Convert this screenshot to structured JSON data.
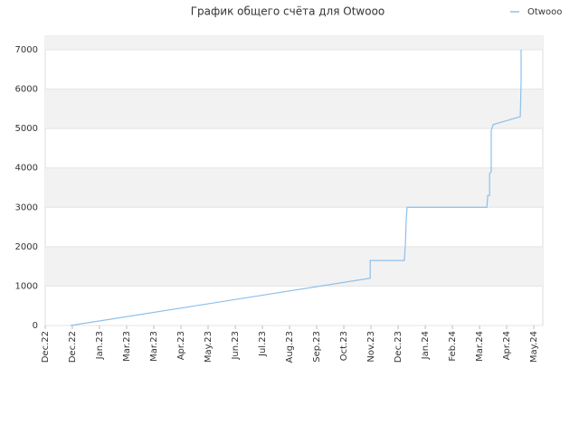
{
  "chart_data": {
    "type": "line",
    "title": "График общего счёта для Otwooo",
    "series": [
      {
        "name": "Otwooo",
        "color": "#8cc0ec",
        "x": [
          0.93,
          11.97,
          11.97,
          13.23,
          13.27,
          13.3,
          13.33,
          16.27,
          16.3,
          16.37,
          16.37,
          16.43,
          16.43,
          16.5,
          17.5,
          17.53,
          17.53
        ],
        "values": [
          0,
          1200,
          1650,
          1650,
          2100,
          2700,
          3000,
          3000,
          3300,
          3300,
          3850,
          3900,
          4950,
          5100,
          5300,
          6200,
          7000
        ]
      }
    ],
    "xlim": [
      0,
      18.33
    ],
    "xticks": [
      {
        "value": 0,
        "label": "Dec.22"
      },
      {
        "value": 1,
        "label": "Dec.22"
      },
      {
        "value": 2,
        "label": "Jan.23"
      },
      {
        "value": 3,
        "label": "Mar.23"
      },
      {
        "value": 4,
        "label": "Mar.23"
      },
      {
        "value": 5,
        "label": "Apr.23"
      },
      {
        "value": 6,
        "label": "May.23"
      },
      {
        "value": 7,
        "label": "Jun.23"
      },
      {
        "value": 8,
        "label": "Jul.23"
      },
      {
        "value": 9,
        "label": "Aug.23"
      },
      {
        "value": 10,
        "label": "Sep.23"
      },
      {
        "value": 11,
        "label": "Oct.23"
      },
      {
        "value": 12,
        "label": "Nov.23"
      },
      {
        "value": 13,
        "label": "Dec.23"
      },
      {
        "value": 14,
        "label": "Jan.24"
      },
      {
        "value": 15,
        "label": "Feb.24"
      },
      {
        "value": 16,
        "label": "Mar.24"
      },
      {
        "value": 17,
        "label": "Apr.24"
      },
      {
        "value": 18,
        "label": "May.24"
      }
    ],
    "ylim": [
      0,
      7344
    ],
    "yticks": [
      0,
      1000,
      2000,
      3000,
      4000,
      5000,
      6000,
      7000
    ],
    "grid": true,
    "legend": "top-right"
  }
}
